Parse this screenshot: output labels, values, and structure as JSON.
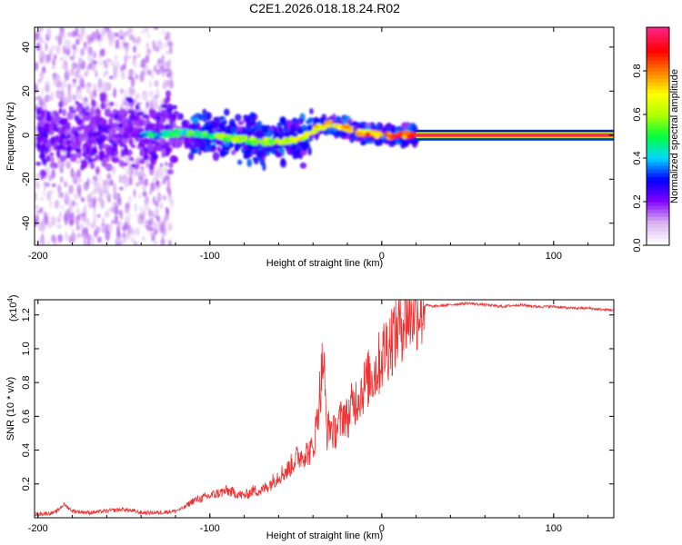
{
  "title": "C2E1.2026.018.18.24.R02",
  "chart_data": [
    {
      "type": "heatmap",
      "xlabel": "Height of straight line (km)",
      "ylabel": "Frequency (Hz)",
      "xlim": [
        -202,
        135
      ],
      "ylim": [
        -50,
        49
      ],
      "xticks": [
        -200,
        -100,
        0,
        100
      ],
      "xtick_labels": [
        "-200",
        "-100",
        "0",
        "100"
      ],
      "yticks": [
        -40,
        -20,
        0,
        20,
        40
      ],
      "ytick_labels": [
        "-40",
        "-20",
        "0",
        "20",
        "40"
      ],
      "trace": {
        "x": [
          -200,
          -190,
          -180,
          -170,
          -160,
          -150,
          -140,
          -130,
          -120,
          -110,
          -100,
          -90,
          -80,
          -70,
          -60,
          -50,
          -45,
          -40,
          -35,
          -30,
          -25,
          -20,
          -15,
          -10,
          -5,
          0,
          5,
          10,
          15,
          20
        ],
        "freq": [
          0,
          1,
          1,
          0,
          0,
          1,
          0,
          0,
          1,
          1,
          0,
          -1,
          -2,
          -3,
          -3,
          -2,
          -1,
          2,
          4,
          5,
          4,
          3,
          2,
          1,
          1,
          0,
          0,
          0,
          0,
          0
        ]
      },
      "tone": {
        "x_start": 20,
        "x_end": 135,
        "freq": 0
      },
      "colorbar": {
        "label": "Normalized spectral amplitude",
        "ticks": [
          0.0,
          0.2,
          0.4,
          0.6,
          0.8
        ],
        "tick_labels": [
          "0.0",
          "0.2",
          "0.4",
          "0.6",
          "0.8"
        ],
        "range": [
          0,
          1
        ],
        "colors": [
          "#ffffff",
          "#d8b0f0",
          "#8000ff",
          "#0000ff",
          "#00d8ff",
          "#00ff40",
          "#b0ff00",
          "#ffff00",
          "#ff8000",
          "#ff0000",
          "#ff2080"
        ]
      }
    },
    {
      "type": "line",
      "xlabel": "Height of straight line (km)",
      "ylabel": "SNR (10 * v/v)",
      "y_multiplier": "(x10",
      "y_multiplier_exp": "4",
      "y_multiplier_close": ")",
      "xlim": [
        -202,
        135
      ],
      "ylim": [
        0,
        1.29
      ],
      "xticks": [
        -200,
        -100,
        0,
        100
      ],
      "xtick_labels": [
        "-200",
        "-100",
        "0",
        "100"
      ],
      "yticks": [
        0.2,
        0.4,
        0.6,
        0.8,
        1.0,
        1.2
      ],
      "ytick_labels": [
        "0.2",
        "0.4",
        "0.6",
        "0.8",
        "1.0",
        "1.2"
      ],
      "series": [
        {
          "name": "SNR",
          "color": "#ee3333",
          "x": [
            -202,
            -190,
            -185,
            -180,
            -170,
            -160,
            -150,
            -140,
            -130,
            -120,
            -115,
            -110,
            -100,
            -90,
            -80,
            -75,
            -70,
            -65,
            -60,
            -55,
            -50,
            -45,
            -40,
            -38,
            -36,
            -34,
            -32,
            -30,
            -28,
            -25,
            -22,
            -20,
            -18,
            -15,
            -12,
            -10,
            -8,
            -5,
            -2,
            0,
            2,
            5,
            8,
            10,
            12,
            15,
            18,
            20,
            25,
            30,
            40,
            50,
            60,
            70,
            80,
            90,
            100,
            110,
            120,
            130,
            135
          ],
          "y": [
            0.02,
            0.03,
            0.08,
            0.04,
            0.03,
            0.04,
            0.05,
            0.03,
            0.03,
            0.04,
            0.06,
            0.1,
            0.13,
            0.16,
            0.13,
            0.16,
            0.16,
            0.2,
            0.25,
            0.28,
            0.35,
            0.38,
            0.4,
            0.55,
            0.75,
            0.95,
            0.5,
            0.55,
            0.5,
            0.55,
            0.62,
            0.58,
            0.65,
            0.7,
            0.75,
            0.78,
            0.82,
            0.85,
            0.9,
            0.95,
            1.0,
            1.05,
            1.1,
            1.14,
            1.18,
            1.2,
            1.23,
            1.25,
            1.26,
            1.25,
            1.26,
            1.27,
            1.26,
            1.25,
            1.26,
            1.25,
            1.25,
            1.24,
            1.24,
            1.23,
            1.23
          ]
        }
      ]
    }
  ]
}
